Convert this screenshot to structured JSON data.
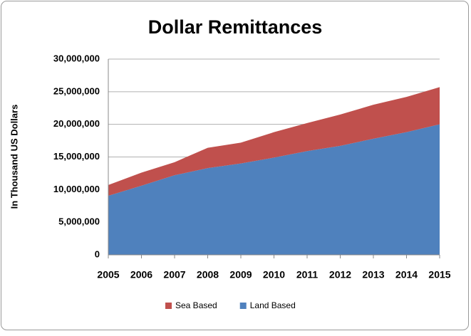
{
  "chart_data": {
    "type": "stacked-area",
    "title": "Dollar Remittances",
    "y_label": "In Thousand US Dollars",
    "x": [
      2005,
      2006,
      2007,
      2008,
      2009,
      2010,
      2011,
      2012,
      2013,
      2014,
      2015
    ],
    "xlim": [
      2005,
      2015
    ],
    "series": [
      {
        "name": "Land Based",
        "color": "#4f81bd",
        "values": [
          9050000,
          10600000,
          12200000,
          13300000,
          14000000,
          14900000,
          15900000,
          16700000,
          17800000,
          18800000,
          20000000
        ]
      },
      {
        "name": "Sea Based",
        "color": "#c0504d",
        "values": [
          1650000,
          2000000,
          2000000,
          3100000,
          3200000,
          3900000,
          4300000,
          4800000,
          5200000,
          5400000,
          5700000
        ]
      }
    ],
    "ylim": [
      0,
      30000000
    ],
    "yticks": [
      0,
      {
        "value": 5000000,
        "label": "5,000,000"
      },
      {
        "value": 10000000,
        "label": "10,000,000"
      },
      {
        "value": 15000000,
        "label": "15,000,000"
      },
      {
        "value": 20000000,
        "label": "20,000,000"
      },
      {
        "value": 25000000,
        "label": "25,000,000"
      },
      {
        "value": 30000000,
        "label": "30,000,000"
      }
    ],
    "grid": true,
    "legend": "bottom"
  }
}
